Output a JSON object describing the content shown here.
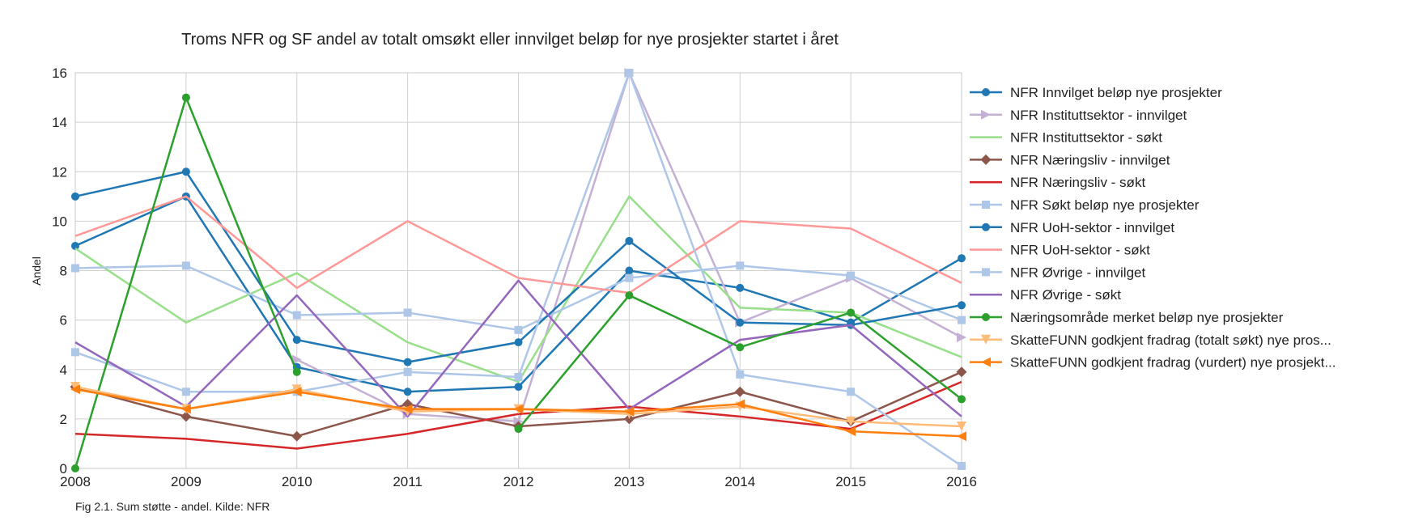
{
  "chart_data": {
    "type": "line",
    "title": "Troms NFR og SF andel av totalt omsøkt eller innvilget beløp for nye prosjekter startet i året",
    "xlabel": "",
    "ylabel": "Andel",
    "caption": "Fig 2.1. Sum støtte - andel. Kilde: NFR",
    "x": [
      "2008",
      "2009",
      "2010",
      "2011",
      "2012",
      "2013",
      "2014",
      "2015",
      "2016"
    ],
    "ylim": [
      0,
      16
    ],
    "yticks": [
      0,
      2,
      4,
      6,
      8,
      10,
      12,
      14,
      16
    ],
    "grid": true,
    "legend_position": "right",
    "series": [
      {
        "name": "NFR Innvilget beløp nye prosjekter",
        "color": "#1f77b4",
        "marker": "circle",
        "values": [
          9.0,
          11.0,
          4.1,
          3.1,
          3.3,
          8.0,
          7.3,
          5.9,
          8.5
        ]
      },
      {
        "name": "NFR Instituttsektor - innvilget",
        "color": "#c5b0d5",
        "marker": "triangle-right",
        "values": [
          null,
          null,
          4.4,
          2.2,
          1.9,
          16.0,
          5.9,
          7.7,
          5.3
        ]
      },
      {
        "name": "NFR Instituttsektor - søkt",
        "color": "#98df8a",
        "marker": "none",
        "values": [
          8.9,
          5.9,
          7.9,
          5.1,
          3.5,
          11.0,
          6.5,
          6.3,
          4.5
        ]
      },
      {
        "name": "NFR Næringsliv - innvilget",
        "color": "#8c564b",
        "marker": "diamond",
        "values": [
          3.3,
          2.1,
          1.3,
          2.6,
          1.7,
          2.0,
          3.1,
          1.9,
          3.9
        ]
      },
      {
        "name": "NFR Næringsliv - søkt",
        "color": "#d62728",
        "marker": "none",
        "values": [
          1.4,
          1.2,
          0.8,
          1.4,
          2.2,
          2.5,
          2.1,
          1.6,
          3.5
        ]
      },
      {
        "name": "NFR Søkt beløp nye prosjekter",
        "color": "#aec7e8",
        "marker": "square",
        "values": [
          8.1,
          8.2,
          6.2,
          6.3,
          5.6,
          7.7,
          8.2,
          7.8,
          6.0
        ]
      },
      {
        "name": "NFR UoH-sektor - innvilget",
        "color": "#1f77b4",
        "marker": "circle",
        "values": [
          11.0,
          12.0,
          5.2,
          4.3,
          5.1,
          9.2,
          5.9,
          5.8,
          6.6
        ]
      },
      {
        "name": "NFR UoH-sektor - søkt",
        "color": "#ff9896",
        "marker": "none",
        "values": [
          9.4,
          11.0,
          7.3,
          10.0,
          7.7,
          7.1,
          10.0,
          9.7,
          7.5
        ]
      },
      {
        "name": "NFR Øvrige - innvilget",
        "color": "#aec7e8",
        "marker": "square",
        "values": [
          4.7,
          3.1,
          3.1,
          3.9,
          3.7,
          16.0,
          3.8,
          3.1,
          0.1
        ]
      },
      {
        "name": "NFR Øvrige - søkt",
        "color": "#9467bd",
        "marker": "none",
        "values": [
          5.1,
          2.5,
          7.0,
          2.1,
          7.6,
          2.4,
          5.2,
          5.8,
          2.1
        ]
      },
      {
        "name": "Næringsområde merket beløp nye prosjekter",
        "color": "#2ca02c",
        "marker": "circle",
        "values": [
          0.0,
          15.0,
          3.9,
          null,
          1.6,
          7.0,
          4.9,
          6.3,
          2.8
        ]
      },
      {
        "name": "SkatteFUNN godkjent fradrag (totalt søkt) nye pros...",
        "color": "#ffbb78",
        "marker": "triangle-down",
        "values": [
          3.3,
          2.4,
          3.2,
          2.3,
          2.4,
          2.2,
          2.5,
          1.9,
          1.7
        ]
      },
      {
        "name": "SkatteFUNN godkjent fradrag (vurdert) nye prosjekt...",
        "color": "#ff7f0e",
        "marker": "triangle-left",
        "values": [
          3.2,
          2.4,
          3.1,
          2.4,
          2.4,
          2.3,
          2.6,
          1.5,
          1.3
        ]
      }
    ]
  }
}
